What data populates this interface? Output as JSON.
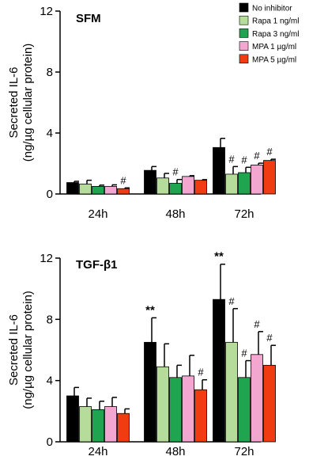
{
  "colors": {
    "No inhibitor": "#000000",
    "Rapa 1 ng/ml": "#b5dc9a",
    "Rapa 3 ng/ml": "#1fa550",
    "MPA 1 µg/ml": "#f3a6cf",
    "MPA 5 µg/ml": "#f03c10"
  },
  "chart_data": [
    {
      "type": "bar",
      "title": "SFM",
      "ylabel_line1": "Secreted IL-6",
      "ylabel_line2": "(ng/µg cellular protein)",
      "ylim": [
        0,
        12
      ],
      "yticks": [
        "0",
        "4",
        "8",
        "12"
      ],
      "categories": [
        "24h",
        "48h",
        "72h"
      ],
      "legend_position": "top-right",
      "series": [
        {
          "name": "No inhibitor",
          "values": [
            0.75,
            1.55,
            3.05
          ],
          "errors": [
            0.08,
            0.25,
            0.6
          ],
          "marks": [
            "",
            "",
            ""
          ]
        },
        {
          "name": "Rapa 1 ng/ml",
          "values": [
            0.65,
            1.05,
            1.3
          ],
          "errors": [
            0.25,
            0.3,
            0.5
          ],
          "marks": [
            "",
            "",
            "#"
          ]
        },
        {
          "name": "Rapa 3 ng/ml",
          "values": [
            0.5,
            0.7,
            1.4
          ],
          "errors": [
            0.08,
            0.25,
            0.35
          ],
          "marks": [
            "",
            "#",
            "#"
          ]
        },
        {
          "name": "MPA 1 µg/ml",
          "values": [
            0.5,
            1.15,
            1.9
          ],
          "errors": [
            0.1,
            0.05,
            0.12
          ],
          "marks": [
            "",
            "",
            "#"
          ]
        },
        {
          "name": "MPA 5 µg/ml",
          "values": [
            0.35,
            0.9,
            2.2
          ],
          "errors": [
            0.05,
            0.04,
            0.08
          ],
          "marks": [
            "#",
            "",
            "#"
          ]
        }
      ]
    },
    {
      "type": "bar",
      "title": "TGF-β1",
      "ylabel_line1": "Secreted IL-6",
      "ylabel_line2": "(ng/µg cellular protein)",
      "ylim": [
        0,
        12
      ],
      "yticks": [
        "0",
        "4",
        "8",
        "12"
      ],
      "categories": [
        "24h",
        "48h",
        "72h"
      ],
      "series": [
        {
          "name": "No inhibitor",
          "values": [
            3.0,
            6.5,
            9.3
          ],
          "errors": [
            0.55,
            1.6,
            2.3
          ],
          "marks": [
            "",
            "**",
            "**"
          ]
        },
        {
          "name": "Rapa 1 ng/ml",
          "values": [
            2.3,
            4.9,
            6.5
          ],
          "errors": [
            0.55,
            1.5,
            2.2
          ],
          "marks": [
            "",
            "",
            "#"
          ]
        },
        {
          "name": "Rapa 3 ng/ml",
          "values": [
            2.1,
            4.2,
            4.2
          ],
          "errors": [
            0.55,
            0.8,
            1.1
          ],
          "marks": [
            "",
            "",
            "#"
          ]
        },
        {
          "name": "MPA 1 µg/ml",
          "values": [
            2.3,
            4.3,
            5.7
          ],
          "errors": [
            0.6,
            1.35,
            1.5
          ],
          "marks": [
            "",
            "",
            "#"
          ]
        },
        {
          "name": "MPA 5 µg/ml",
          "values": [
            1.85,
            3.4,
            5.0
          ],
          "errors": [
            0.3,
            0.65,
            1.3
          ],
          "marks": [
            "",
            "#",
            "#"
          ]
        }
      ]
    }
  ]
}
